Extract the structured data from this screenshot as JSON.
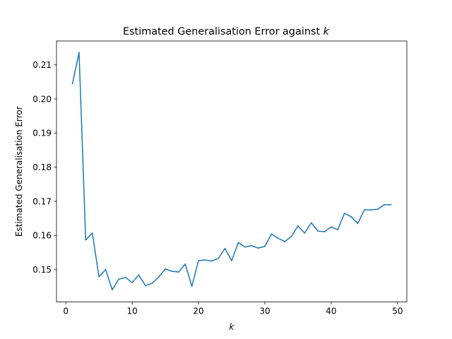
{
  "chart_data": {
    "type": "line",
    "title": "Estimated Generalisation Error against ",
    "title_var": "k",
    "xlabel": "k",
    "ylabel": "Estimated Generalisation Error",
    "xlim": [
      -1.4,
      51.4
    ],
    "ylim": [
      0.1405,
      0.217
    ],
    "xticks": [
      0,
      10,
      20,
      30,
      40,
      50
    ],
    "xtick_labels": [
      "0",
      "10",
      "20",
      "30",
      "40",
      "50"
    ],
    "yticks": [
      0.15,
      0.16,
      0.17,
      0.18,
      0.19,
      0.2,
      0.21
    ],
    "ytick_labels": [
      "0.15",
      "0.16",
      "0.17",
      "0.18",
      "0.19",
      "0.20",
      "0.21"
    ],
    "grid": false,
    "series": [
      {
        "color": "#1f77b4",
        "x": [
          1,
          2,
          3,
          4,
          5,
          6,
          7,
          8,
          9,
          10,
          11,
          12,
          13,
          14,
          15,
          16,
          17,
          18,
          19,
          20,
          21,
          22,
          23,
          24,
          25,
          26,
          27,
          28,
          29,
          30,
          31,
          32,
          33,
          34,
          35,
          36,
          37,
          38,
          39,
          40,
          41,
          42,
          43,
          44,
          45,
          46,
          47,
          48,
          49
        ],
        "y": [
          0.2045,
          0.2136,
          0.1587,
          0.1607,
          0.1479,
          0.15,
          0.1441,
          0.1472,
          0.1477,
          0.1462,
          0.1484,
          0.1453,
          0.146,
          0.1478,
          0.1502,
          0.1495,
          0.1493,
          0.1516,
          0.1451,
          0.1526,
          0.1528,
          0.1525,
          0.1533,
          0.1562,
          0.1526,
          0.1579,
          0.1566,
          0.157,
          0.1563,
          0.1568,
          0.1604,
          0.1592,
          0.1582,
          0.1597,
          0.1628,
          0.1607,
          0.1637,
          0.1613,
          0.1611,
          0.1625,
          0.1617,
          0.1665,
          0.1655,
          0.1635,
          0.1675,
          0.1675,
          0.1677,
          0.169,
          0.169
        ]
      }
    ]
  }
}
